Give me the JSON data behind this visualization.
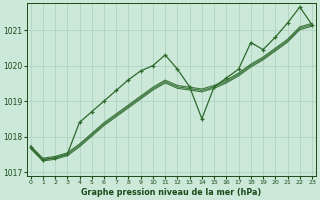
{
  "x": [
    0,
    1,
    2,
    3,
    4,
    5,
    6,
    7,
    8,
    9,
    10,
    11,
    12,
    13,
    14,
    15,
    16,
    17,
    18,
    19,
    20,
    21,
    22,
    23
  ],
  "series_volatile": [
    1017.7,
    1017.35,
    1017.4,
    1017.5,
    1018.4,
    1018.7,
    1019.0,
    1019.3,
    1019.6,
    1019.85,
    1020.0,
    1020.3,
    1019.9,
    1019.4,
    1018.5,
    1019.4,
    1019.65,
    1019.9,
    1020.65,
    1020.45,
    1020.8,
    1021.2,
    1021.65,
    1021.15
  ],
  "series_trend1": [
    1017.7,
    1017.35,
    1017.4,
    1017.5,
    1017.75,
    1018.05,
    1018.35,
    1018.6,
    1018.85,
    1019.1,
    1019.35,
    1019.55,
    1019.4,
    1019.35,
    1019.3,
    1019.4,
    1019.55,
    1019.75,
    1020.0,
    1020.2,
    1020.45,
    1020.7,
    1021.05,
    1021.15
  ],
  "series_trend2": [
    1017.7,
    1017.35,
    1017.4,
    1017.5,
    1017.75,
    1018.05,
    1018.35,
    1018.6,
    1018.85,
    1019.1,
    1019.35,
    1019.55,
    1019.4,
    1019.35,
    1019.3,
    1019.4,
    1019.55,
    1019.75,
    1020.0,
    1020.2,
    1020.45,
    1020.7,
    1021.05,
    1021.05
  ],
  "line_color": "#2d6a2d",
  "bg_color": "#cce8d8",
  "grid_color": "#aacfbe",
  "xlabel": "Graphe pression niveau de la mer (hPa)",
  "xlabel_color": "#1a4a1a",
  "tick_color": "#1a4a1a",
  "ylim": [
    1016.9,
    1021.75
  ],
  "yticks": [
    1017,
    1018,
    1019,
    1020,
    1021
  ],
  "xlim": [
    -0.3,
    23.3
  ]
}
